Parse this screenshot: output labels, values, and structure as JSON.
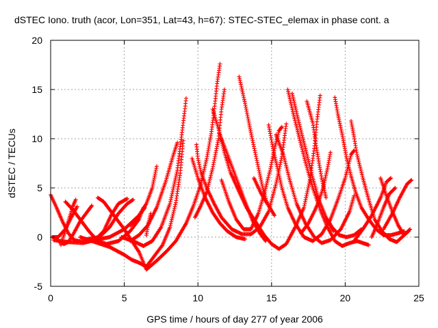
{
  "chart_data": {
    "type": "scatter",
    "title": "dSTEC Iono. truth (acor, Lon=351, Lat=43, h=67): STEC-STEC_elemax in phase cont. a",
    "xlabel": "GPS time / hours of day 277 of year 2006",
    "ylabel": "dSTEC  / TECUs",
    "xlim": [
      0,
      25
    ],
    "ylim": [
      -5,
      20
    ],
    "x_ticks": [
      0,
      5,
      10,
      15,
      20,
      25
    ],
    "y_ticks": [
      -5,
      0,
      5,
      10,
      15,
      20
    ],
    "x_tick_labels": [
      "0",
      "5",
      "10",
      "15",
      "20",
      "25"
    ],
    "y_tick_labels": [
      "-5",
      "0",
      "5",
      "10",
      "15",
      "20"
    ],
    "grid": true,
    "legend": "none",
    "marker": "plus",
    "marker_color": "#ff0000",
    "series": [
      {
        "points": [
          [
            0.0,
            4.3
          ],
          [
            0.4,
            3.0
          ],
          [
            0.8,
            1.6
          ],
          [
            1.2,
            0.4
          ],
          [
            1.6,
            -0.3
          ],
          [
            2.2,
            -0.5
          ],
          [
            3.0,
            -0.3
          ],
          [
            4.0,
            0.0
          ],
          [
            5.0,
            0.8
          ],
          [
            6.0,
            2.2
          ],
          [
            6.5,
            3.4
          ],
          [
            6.9,
            5.0
          ],
          [
            7.2,
            7.2
          ]
        ]
      },
      {
        "points": [
          [
            0.1,
            0.0
          ],
          [
            0.5,
            0.0
          ],
          [
            1.0,
            0.8
          ],
          [
            1.4,
            2.0
          ],
          [
            1.8,
            3.1
          ]
        ]
      },
      {
        "points": [
          [
            0.3,
            0.0
          ],
          [
            0.6,
            -0.5
          ],
          [
            0.9,
            -0.7
          ],
          [
            1.2,
            -0.5
          ],
          [
            1.5,
            0.2
          ],
          [
            2.0,
            1.6
          ],
          [
            2.5,
            2.6
          ],
          [
            2.8,
            3.2
          ]
        ]
      },
      {
        "points": [
          [
            0.7,
            -0.8
          ],
          [
            0.9,
            0.2
          ],
          [
            1.2,
            1.6
          ],
          [
            1.5,
            3.1
          ],
          [
            1.7,
            3.8
          ]
        ]
      },
      {
        "points": [
          [
            1.0,
            3.6
          ],
          [
            1.5,
            2.8
          ],
          [
            2.0,
            1.8
          ],
          [
            2.6,
            0.6
          ],
          [
            3.2,
            -0.4
          ],
          [
            3.8,
            -0.7
          ],
          [
            4.6,
            -0.4
          ],
          [
            5.4,
            0.6
          ],
          [
            6.0,
            1.8
          ],
          [
            6.3,
            3.0
          ]
        ]
      },
      {
        "points": [
          [
            0.2,
            -0.3
          ],
          [
            1.2,
            -0.5
          ],
          [
            2.2,
            -0.6
          ],
          [
            3.0,
            -0.3
          ],
          [
            3.6,
            0.6
          ],
          [
            4.1,
            2.2
          ],
          [
            4.6,
            3.4
          ],
          [
            5.2,
            3.9
          ]
        ]
      },
      {
        "points": [
          [
            3.2,
            4.0
          ],
          [
            3.6,
            3.6
          ],
          [
            4.2,
            2.4
          ],
          [
            5.0,
            0.8
          ],
          [
            5.6,
            -0.6
          ],
          [
            6.0,
            -1.5
          ],
          [
            6.5,
            -3.3
          ],
          [
            7.2,
            -2.4
          ],
          [
            7.9,
            -1.4
          ],
          [
            8.5,
            -0.4
          ],
          [
            9.2,
            1.4
          ],
          [
            9.7,
            3.2
          ],
          [
            10.2,
            5.4
          ],
          [
            10.6,
            8.0
          ],
          [
            10.9,
            10.5
          ],
          [
            11.1,
            12.8
          ],
          [
            11.3,
            15.6
          ],
          [
            11.5,
            17.6
          ]
        ]
      },
      {
        "points": [
          [
            2.5,
            -0.2
          ],
          [
            3.3,
            0.0
          ],
          [
            4.0,
            1.0
          ],
          [
            4.6,
            2.4
          ],
          [
            5.2,
            3.4
          ],
          [
            5.6,
            3.8
          ]
        ]
      },
      {
        "points": [
          [
            2.0,
            0.0
          ],
          [
            3.0,
            -0.5
          ],
          [
            4.0,
            -1.0
          ],
          [
            5.0,
            -1.8
          ],
          [
            5.5,
            -2.3
          ],
          [
            6.0,
            -2.6
          ],
          [
            6.5,
            -3.0
          ],
          [
            7.0,
            -2.0
          ],
          [
            7.6,
            -0.8
          ],
          [
            8.1,
            1.0
          ],
          [
            8.5,
            3.5
          ],
          [
            8.8,
            6.5
          ],
          [
            9.0,
            9.8
          ]
        ]
      },
      {
        "points": [
          [
            4.8,
            0.0
          ],
          [
            5.6,
            -0.4
          ],
          [
            6.3,
            -0.9
          ],
          [
            6.9,
            -0.4
          ],
          [
            7.5,
            1.0
          ],
          [
            8.1,
            3.4
          ],
          [
            8.6,
            6.8
          ],
          [
            8.9,
            10.4
          ],
          [
            9.1,
            12.8
          ],
          [
            9.2,
            14.1
          ]
        ]
      },
      {
        "points": [
          [
            5.4,
            -0.4
          ],
          [
            6.0,
            0.2
          ],
          [
            6.6,
            1.2
          ],
          [
            7.2,
            3.0
          ],
          [
            7.8,
            5.6
          ],
          [
            8.3,
            8.2
          ],
          [
            8.6,
            9.6
          ]
        ]
      },
      {
        "points": [
          [
            6.4,
            3.0
          ],
          [
            6.1,
            2.4
          ],
          [
            5.8,
            1.7
          ],
          [
            5.4,
            1.2
          ]
        ]
      },
      {
        "points": [
          [
            6.5,
            0.2
          ],
          [
            6.6,
            1.2
          ],
          [
            6.8,
            2.4
          ]
        ]
      },
      {
        "points": [
          [
            9.9,
            9.4
          ],
          [
            10.0,
            8.0
          ],
          [
            10.2,
            6.6
          ],
          [
            10.6,
            5.0
          ],
          [
            11.1,
            3.4
          ],
          [
            11.6,
            2.0
          ],
          [
            12.3,
            0.8
          ],
          [
            13.0,
            0.3
          ],
          [
            13.6,
            0.3
          ],
          [
            14.2,
            1.0
          ],
          [
            14.8,
            2.6
          ],
          [
            15.3,
            5.4
          ],
          [
            15.7,
            8.2
          ],
          [
            16.0,
            11.5
          ]
        ]
      },
      {
        "points": [
          [
            9.6,
            8.0
          ],
          [
            10.0,
            6.0
          ],
          [
            10.5,
            4.0
          ],
          [
            11.0,
            2.5
          ],
          [
            11.5,
            1.4
          ],
          [
            12.0,
            0.6
          ],
          [
            12.6,
            0.0
          ],
          [
            13.2,
            -0.2
          ]
        ]
      },
      {
        "points": [
          [
            9.8,
            2.0
          ],
          [
            10.2,
            3.2
          ],
          [
            10.6,
            4.6
          ],
          [
            11.0,
            7.0
          ],
          [
            11.4,
            10.0
          ],
          [
            11.6,
            13.0
          ],
          [
            11.8,
            15.0
          ]
        ]
      },
      {
        "points": [
          [
            11.0,
            13.0
          ],
          [
            11.4,
            11.0
          ],
          [
            11.8,
            8.6
          ],
          [
            12.2,
            6.6
          ],
          [
            12.8,
            4.6
          ],
          [
            13.3,
            3.0
          ],
          [
            13.9,
            1.6
          ],
          [
            14.5,
            0.2
          ],
          [
            15.0,
            -0.7
          ],
          [
            15.5,
            -1.2
          ],
          [
            16.0,
            -0.7
          ],
          [
            16.6,
            1.0
          ],
          [
            17.2,
            3.0
          ],
          [
            17.6,
            5.8
          ],
          [
            17.9,
            9.0
          ],
          [
            18.1,
            12.0
          ],
          [
            18.3,
            14.4
          ]
        ]
      },
      {
        "points": [
          [
            11.5,
            10.4
          ],
          [
            12.1,
            8.0
          ],
          [
            12.7,
            5.6
          ],
          [
            13.2,
            3.6
          ],
          [
            13.7,
            1.7
          ],
          [
            14.2,
            0.4
          ],
          [
            14.6,
            -0.4
          ]
        ]
      },
      {
        "points": [
          [
            11.6,
            5.8
          ],
          [
            12.1,
            3.6
          ],
          [
            12.6,
            1.8
          ],
          [
            13.1,
            0.8
          ],
          [
            13.6,
            0.8
          ],
          [
            14.1,
            2.4
          ],
          [
            14.5,
            4.4
          ],
          [
            14.9,
            6.8
          ],
          [
            15.2,
            9.0
          ],
          [
            15.5,
            10.8
          ],
          [
            15.7,
            11.2
          ]
        ]
      },
      {
        "points": [
          [
            12.8,
            16.3
          ],
          [
            13.2,
            13.6
          ],
          [
            13.6,
            10.6
          ],
          [
            14.0,
            7.8
          ],
          [
            14.4,
            5.0
          ],
          [
            14.7,
            3.4
          ]
        ]
      },
      {
        "points": [
          [
            13.8,
            6.0
          ],
          [
            14.3,
            4.4
          ],
          [
            14.8,
            3.2
          ],
          [
            15.2,
            2.2
          ]
        ]
      },
      {
        "points": [
          [
            14.8,
            11.4
          ],
          [
            15.1,
            9.0
          ],
          [
            15.4,
            7.0
          ],
          [
            15.7,
            5.0
          ],
          [
            16.1,
            3.0
          ],
          [
            16.6,
            1.4
          ],
          [
            17.2,
            0.0
          ],
          [
            17.8,
            -0.4
          ],
          [
            18.4,
            0.3
          ],
          [
            19.0,
            1.8
          ],
          [
            19.5,
            3.8
          ],
          [
            20.0,
            6.0
          ],
          [
            20.4,
            8.4
          ],
          [
            20.6,
            8.8
          ]
        ]
      },
      {
        "points": [
          [
            15.3,
            10.4
          ],
          [
            15.8,
            8.4
          ],
          [
            16.2,
            6.0
          ],
          [
            16.7,
            3.4
          ],
          [
            17.3,
            1.4
          ],
          [
            17.9,
            0.0
          ],
          [
            18.4,
            -0.6
          ],
          [
            19.0,
            -0.3
          ],
          [
            19.7,
            0.8
          ],
          [
            20.3,
            2.6
          ],
          [
            20.6,
            4.2
          ]
        ]
      },
      {
        "points": [
          [
            16.1,
            15.0
          ],
          [
            16.5,
            12.4
          ],
          [
            16.9,
            10.0
          ],
          [
            17.3,
            7.6
          ],
          [
            17.8,
            5.0
          ],
          [
            18.3,
            2.8
          ],
          [
            18.8,
            1.0
          ],
          [
            19.3,
            -0.4
          ],
          [
            19.8,
            -0.9
          ],
          [
            20.3,
            -0.6
          ],
          [
            20.8,
            -0.4
          ],
          [
            21.6,
            -0.8
          ]
        ]
      },
      {
        "points": [
          [
            16.4,
            14.6
          ],
          [
            16.8,
            12.0
          ],
          [
            17.3,
            9.0
          ],
          [
            17.8,
            6.0
          ],
          [
            18.2,
            3.8
          ],
          [
            18.7,
            2.0
          ],
          [
            19.2,
            0.6
          ]
        ]
      },
      {
        "points": [
          [
            17.4,
            13.8
          ],
          [
            17.8,
            11.6
          ],
          [
            18.1,
            8.6
          ],
          [
            18.4,
            6.0
          ],
          [
            18.7,
            4.0
          ]
        ]
      },
      {
        "points": [
          [
            17.0,
            0.4
          ],
          [
            17.5,
            1.4
          ],
          [
            17.9,
            2.6
          ],
          [
            18.2,
            3.6
          ],
          [
            18.5,
            5.0
          ],
          [
            18.8,
            7.0
          ],
          [
            19.0,
            8.6
          ]
        ]
      },
      {
        "points": [
          [
            18.8,
            1.8
          ],
          [
            19.1,
            1.0
          ],
          [
            19.6,
            0.2
          ],
          [
            20.1,
            0.0
          ],
          [
            20.6,
            0.2
          ],
          [
            21.1,
            0.8
          ]
        ]
      },
      {
        "points": [
          [
            19.3,
            14.2
          ],
          [
            19.5,
            12.5
          ],
          [
            19.8,
            10.4
          ],
          [
            20.1,
            8.0
          ],
          [
            20.4,
            6.2
          ],
          [
            20.7,
            4.6
          ],
          [
            21.1,
            3.0
          ],
          [
            21.6,
            1.8
          ],
          [
            22.1,
            0.8
          ],
          [
            22.6,
            0.2
          ],
          [
            23.1,
            0.2
          ],
          [
            23.6,
            0.4
          ],
          [
            24.0,
            0.6
          ]
        ]
      },
      {
        "points": [
          [
            20.4,
            11.8
          ],
          [
            20.6,
            10.2
          ],
          [
            20.8,
            8.4
          ],
          [
            21.2,
            6.0
          ],
          [
            21.6,
            3.8
          ],
          [
            22.0,
            1.8
          ],
          [
            22.5,
            0.6
          ],
          [
            23.0,
            -0.2
          ],
          [
            23.5,
            -0.5
          ],
          [
            24.0,
            0.2
          ],
          [
            24.3,
            0.6
          ]
        ]
      },
      {
        "points": [
          [
            20.6,
            -0.4
          ],
          [
            21.2,
            0.8
          ],
          [
            21.8,
            2.2
          ],
          [
            22.4,
            4.0
          ],
          [
            22.8,
            5.6
          ],
          [
            23.1,
            6.0
          ]
        ]
      },
      {
        "points": [
          [
            21.8,
            0.0
          ],
          [
            22.2,
            1.4
          ],
          [
            22.6,
            3.0
          ],
          [
            23.0,
            4.4
          ],
          [
            23.4,
            5.0
          ]
        ]
      },
      {
        "points": [
          [
            22.6,
            0.8
          ],
          [
            23.2,
            2.4
          ],
          [
            23.7,
            4.0
          ],
          [
            24.2,
            5.4
          ],
          [
            24.5,
            5.8
          ]
        ]
      },
      {
        "points": [
          [
            22.4,
            6.0
          ],
          [
            22.8,
            4.2
          ],
          [
            23.2,
            2.6
          ],
          [
            23.6,
            1.2
          ],
          [
            24.0,
            0.2
          ],
          [
            24.4,
            0.8
          ]
        ]
      }
    ]
  }
}
